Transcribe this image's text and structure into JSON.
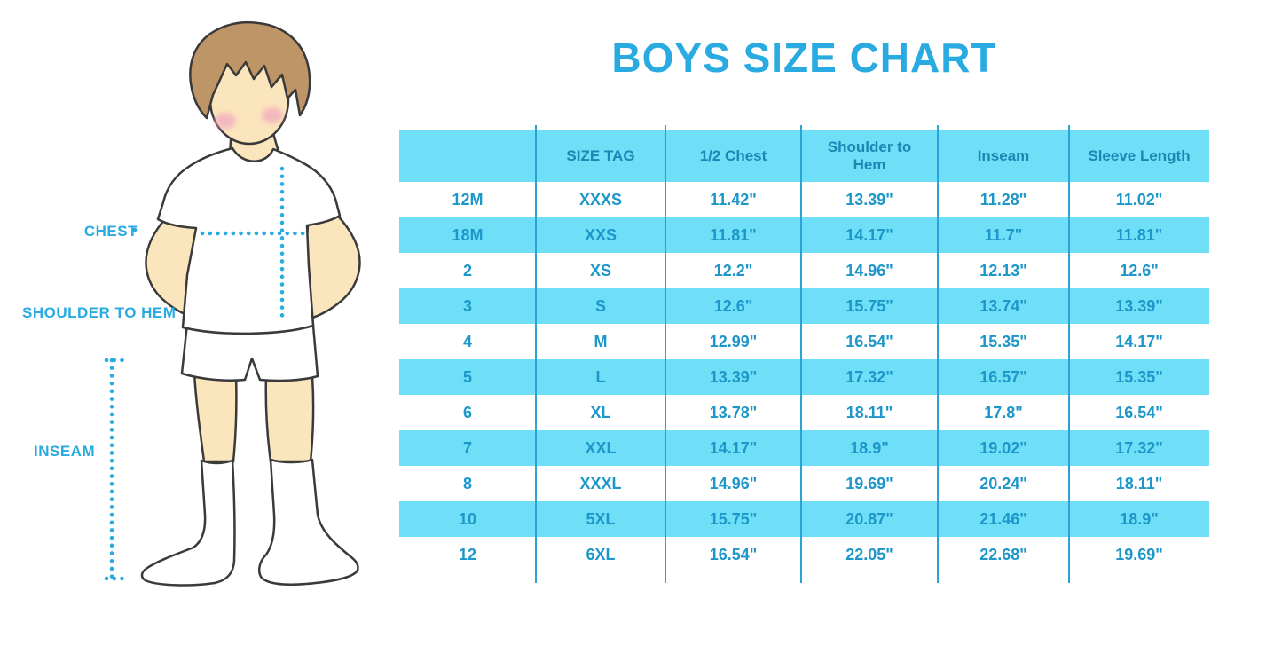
{
  "chart_data": {
    "type": "table",
    "title": "BOYS SIZE CHART",
    "columns": [
      "",
      "SIZE TAG",
      "1/2 Chest",
      "Shoulder to Hem",
      "Inseam",
      "Sleeve Length"
    ],
    "rows": [
      [
        "12M",
        "XXXS",
        "11.42\"",
        "13.39\"",
        "11.28\"",
        "11.02\""
      ],
      [
        "18M",
        "XXS",
        "11.81\"",
        "14.17\"",
        "11.7\"",
        "11.81\""
      ],
      [
        "2",
        "XS",
        "12.2\"",
        "14.96\"",
        "12.13\"",
        "12.6\""
      ],
      [
        "3",
        "S",
        "12.6\"",
        "15.75\"",
        "13.74\"",
        "13.39\""
      ],
      [
        "4",
        "M",
        "12.99\"",
        "16.54\"",
        "15.35\"",
        "14.17\""
      ],
      [
        "5",
        "L",
        "13.39\"",
        "17.32\"",
        "16.57\"",
        "15.35\""
      ],
      [
        "6",
        "XL",
        "13.78\"",
        "18.11\"",
        "17.8\"",
        "16.54\""
      ],
      [
        "7",
        "XXL",
        "14.17\"",
        "18.9\"",
        "19.02\"",
        "17.32\""
      ],
      [
        "8",
        "XXXL",
        "14.96\"",
        "19.69\"",
        "20.24\"",
        "18.11\""
      ],
      [
        "10",
        "5XL",
        "15.75\"",
        "20.87\"",
        "21.46\"",
        "18.9\""
      ],
      [
        "12",
        "6XL",
        "16.54\"",
        "22.05\"",
        "22.68\"",
        "19.69\""
      ]
    ],
    "layout": {
      "row_striping": "alternate white / light blue",
      "grid": "vertical column separators only"
    }
  },
  "figure": {
    "labels": {
      "chest": "CHEST",
      "shoulder_to_hem": "SHOULDER TO HEM",
      "inseam": "INSEAM"
    }
  },
  "colors": {
    "accent_blue": "#29ABE2",
    "row_highlight": "#6FDFF8",
    "header_text": "#1B87B5",
    "cell_text": "#1D97C9",
    "grid_line": "#2BA3D7",
    "skin": "#FBE5BC",
    "hair": "#BD9566",
    "blush": "#F3AEC0",
    "outline": "#3A3A3A"
  }
}
